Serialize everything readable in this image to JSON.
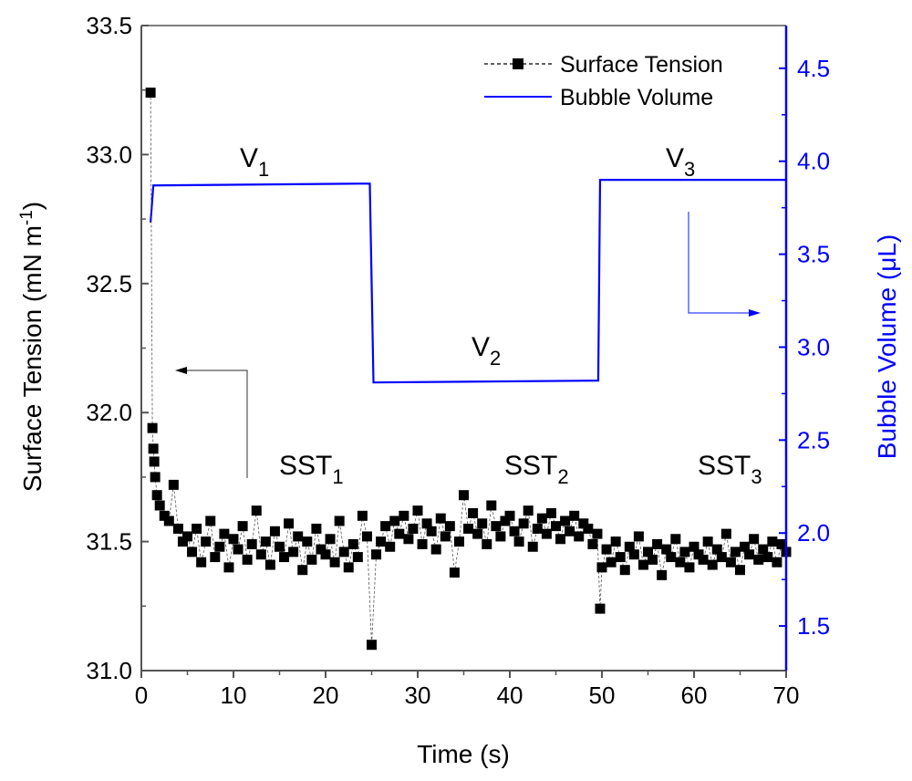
{
  "chart_data": {
    "type": "scatter",
    "xlabel": "Time (s)",
    "ylabel_left": {
      "main": "Surface Tension (mN m",
      "sup": "-1",
      "tail": ")"
    },
    "ylabel_right": "Bubble Volume (μL)",
    "xlim": [
      0,
      70
    ],
    "ylim_left": [
      31.0,
      33.5
    ],
    "ylim_right": [
      1.26,
      4.73
    ],
    "x_ticks": [
      "0",
      "10",
      "20",
      "30",
      "40",
      "50",
      "60",
      "70"
    ],
    "y_left_ticks": [
      "31.0",
      "31.5",
      "32.0",
      "32.5",
      "33.0",
      "33.5"
    ],
    "y_right_ticks": [
      "1.5",
      "2.0",
      "2.5",
      "3.0",
      "3.5",
      "4.0",
      "4.5"
    ],
    "grid": false,
    "legend_position": "top-right",
    "colors": {
      "surface_tension": "#000000",
      "bubble_volume": "#0000ff",
      "right_axis": "#0000ff"
    },
    "series": [
      {
        "name": "Surface Tension",
        "axis": "left",
        "style": "dashed-line-square-markers",
        "points": [
          [
            1.0,
            33.24
          ],
          [
            1.2,
            31.94
          ],
          [
            1.3,
            31.86
          ],
          [
            1.4,
            31.81
          ],
          [
            1.5,
            31.75
          ],
          [
            1.7,
            31.68
          ],
          [
            2.0,
            31.64
          ],
          [
            2.5,
            31.6
          ],
          [
            3.0,
            31.58
          ],
          [
            3.5,
            31.72
          ],
          [
            4.0,
            31.55
          ],
          [
            4.5,
            31.5
          ]
        ],
        "segments": [
          {
            "x0": 5.0,
            "step": 0.5,
            "values": [
              31.52,
              31.46,
              31.55,
              31.42,
              31.5,
              31.58,
              31.44,
              31.48,
              31.53,
              31.4,
              31.51,
              31.47,
              31.56,
              31.43,
              31.49,
              31.62,
              31.45,
              31.5,
              31.41,
              31.54,
              31.48,
              31.44,
              31.57,
              31.46,
              31.52,
              31.39,
              31.5,
              31.43,
              31.55,
              31.47,
              31.45,
              31.51,
              31.42,
              31.58,
              31.46,
              31.4,
              31.49,
              31.44,
              31.6,
              31.52
            ]
          },
          {
            "x0": 25.0,
            "step": 0.5,
            "values": [
              31.1
            ]
          },
          {
            "x0": 25.5,
            "step": 0.5,
            "values": [
              31.45,
              31.5,
              31.56,
              31.48,
              31.58,
              31.53,
              31.6,
              31.51,
              31.55,
              31.62,
              31.49,
              31.57,
              31.54,
              31.47,
              31.59,
              31.52,
              31.56,
              31.38,
              31.5,
              31.68,
              31.55,
              31.61,
              31.53,
              31.57,
              31.49,
              31.64,
              31.56,
              31.52,
              31.58,
              31.6,
              31.54,
              31.5,
              31.57,
              31.62,
              31.48,
              31.55,
              31.59,
              31.53,
              31.61,
              31.56,
              31.51,
              31.58,
              31.54,
              31.6,
              31.52,
              31.57,
              31.55,
              31.49,
              31.53
            ]
          },
          {
            "x0": 49.8,
            "step": 0.2,
            "values": [
              31.24,
              31.4
            ]
          },
          {
            "x0": 50.5,
            "step": 0.5,
            "values": [
              31.47,
              31.42,
              31.5,
              31.44,
              31.39,
              31.48,
              31.45,
              31.52,
              31.41,
              31.46,
              31.43,
              31.49,
              31.37,
              31.47,
              31.44,
              31.51,
              31.42,
              31.46,
              31.4,
              31.48,
              31.45,
              31.43,
              31.5,
              31.41,
              31.47,
              31.44,
              31.53,
              31.42,
              31.46,
              31.39,
              31.48,
              31.45,
              31.51,
              31.43,
              31.47,
              31.44,
              31.5,
              31.42,
              31.49,
              31.46
            ]
          }
        ]
      },
      {
        "name": "Bubble Volume",
        "axis": "right",
        "style": "line",
        "points": [
          [
            1.0,
            3.67
          ],
          [
            1.3,
            3.87
          ],
          [
            24.8,
            3.88
          ],
          [
            25.2,
            2.81
          ],
          [
            49.6,
            2.82
          ],
          [
            49.8,
            3.9
          ],
          [
            70,
            3.9
          ]
        ]
      }
    ],
    "annotations": {
      "v1": {
        "base": "V",
        "sub": "1"
      },
      "v2": {
        "base": "V",
        "sub": "2"
      },
      "v3": {
        "base": "V",
        "sub": "3"
      },
      "sst1": {
        "base": "SST",
        "sub": "1"
      },
      "sst2": {
        "base": "SST",
        "sub": "2"
      },
      "sst3": {
        "base": "SST",
        "sub": "3"
      }
    }
  }
}
